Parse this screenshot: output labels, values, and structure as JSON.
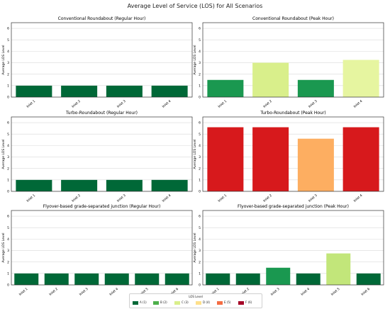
{
  "title": "Average Level of Service (LOS) for All Scenarios",
  "legend": {
    "title": "LOS Level",
    "items": [
      {
        "label": "A (1)",
        "color": "#006837"
      },
      {
        "label": "B (2)",
        "color": "#4daf4a"
      },
      {
        "label": "C (3)",
        "color": "#d9ef8b"
      },
      {
        "label": "D (4)",
        "color": "#fee08b"
      },
      {
        "label": "E (5)",
        "color": "#f46d43"
      },
      {
        "label": "F (6)",
        "color": "#a50026"
      }
    ]
  },
  "chart_data": [
    {
      "type": "bar",
      "title": "Conventional Roundabout (Regular Hour)",
      "ylabel": "Average LOS Level",
      "ylim": [
        0,
        6.5
      ],
      "yticks": [
        0,
        1,
        2,
        3,
        4,
        5,
        6
      ],
      "grid": true,
      "categories": [
        "Inlet 1",
        "Inlet 2",
        "Inlet 3",
        "Inlet 4"
      ],
      "values": [
        1,
        1,
        1,
        1
      ],
      "colors": [
        "#006837",
        "#006837",
        "#006837",
        "#006837"
      ]
    },
    {
      "type": "bar",
      "title": "Conventional Roundabout (Peak Hour)",
      "ylabel": "Average LOS Level",
      "ylim": [
        0,
        6.5
      ],
      "yticks": [
        0,
        1,
        2,
        3,
        4,
        5,
        6
      ],
      "grid": true,
      "categories": [
        "Inlet 1",
        "Inlet 2",
        "Inlet 3",
        "Inlet 4"
      ],
      "values": [
        1.5,
        3.0,
        1.5,
        3.25
      ],
      "colors": [
        "#1a9850",
        "#d9ef8b",
        "#1a9850",
        "#e6f5a0"
      ]
    },
    {
      "type": "bar",
      "title": "Turbo-Roundabout (Regular Hour)",
      "ylabel": "Average LOS Level",
      "ylim": [
        0,
        6.5
      ],
      "yticks": [
        0,
        1,
        2,
        3,
        4,
        5,
        6
      ],
      "grid": true,
      "categories": [
        "Inlet 1",
        "Inlet 2",
        "Inlet 3",
        "Inlet 4"
      ],
      "values": [
        1,
        1,
        1,
        1
      ],
      "colors": [
        "#006837",
        "#006837",
        "#006837",
        "#006837"
      ]
    },
    {
      "type": "bar",
      "title": "Turbo-Roundabout (Peak Hour)",
      "ylabel": "Average LOS Level",
      "ylim": [
        0,
        6.5
      ],
      "yticks": [
        0,
        1,
        2,
        3,
        4,
        5,
        6
      ],
      "grid": true,
      "categories": [
        "Inlet 1",
        "Inlet 2",
        "Inlet 3",
        "Inlet 4"
      ],
      "values": [
        5.6,
        5.6,
        4.6,
        5.6
      ],
      "colors": [
        "#d7191c",
        "#d7191c",
        "#fdae61",
        "#d7191c"
      ]
    },
    {
      "type": "bar",
      "title": "Flyover-based grade-separated junction (Regular Hour)",
      "ylabel": "Average LOS Level",
      "ylim": [
        0,
        6.5
      ],
      "yticks": [
        0,
        1,
        2,
        3,
        4,
        5,
        6
      ],
      "grid": true,
      "categories": [
        "Inlet 1",
        "Inlet 2",
        "Inlet 3",
        "Inlet 4",
        "Inlet 5",
        "Inlet 6"
      ],
      "values": [
        1,
        1,
        1,
        1,
        1,
        1
      ],
      "colors": [
        "#006837",
        "#006837",
        "#006837",
        "#006837",
        "#006837",
        "#006837"
      ]
    },
    {
      "type": "bar",
      "title": "Flyover-based grade-separated junction (Peak Hour)",
      "ylabel": "Average LOS Level",
      "ylim": [
        0,
        6.5
      ],
      "yticks": [
        0,
        1,
        2,
        3,
        4,
        5,
        6
      ],
      "grid": true,
      "categories": [
        "Inlet 1",
        "Inlet 2",
        "Inlet 3",
        "Inlet 4",
        "Inlet 5",
        "Inlet 6"
      ],
      "values": [
        1,
        1,
        1.5,
        1,
        2.75,
        1
      ],
      "colors": [
        "#006837",
        "#006837",
        "#1a9850",
        "#006837",
        "#c2e67a",
        "#006837"
      ]
    }
  ]
}
